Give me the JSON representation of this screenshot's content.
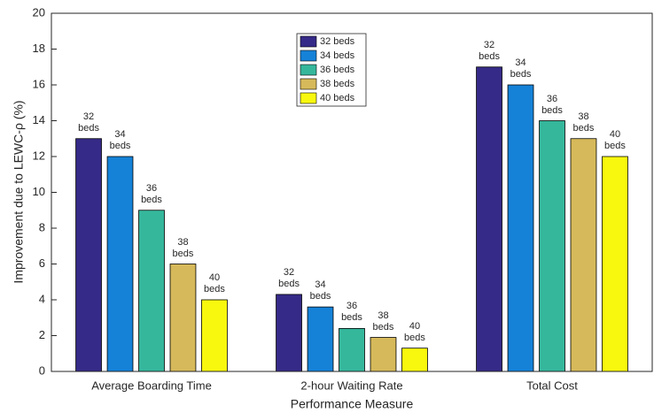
{
  "chart_data": {
    "type": "bar",
    "xlabel": "Performance Measure",
    "ylabel": "Improvement due to LEWC-ρ (%)",
    "categories": [
      "Average Boarding Time",
      "2-hour Waiting Rate",
      "Total Cost"
    ],
    "series": [
      {
        "name": "32 beds",
        "color": "#352a87",
        "values": [
          13,
          4.3,
          17
        ]
      },
      {
        "name": "34 beds",
        "color": "#1582d8",
        "values": [
          12,
          3.6,
          16
        ]
      },
      {
        "name": "36 beds",
        "color": "#35b79c",
        "values": [
          9,
          2.4,
          14
        ]
      },
      {
        "name": "38 beds",
        "color": "#d6b95a",
        "values": [
          6,
          1.9,
          13
        ]
      },
      {
        "name": "40 beds",
        "color": "#f8f80e",
        "values": [
          4,
          1.3,
          12
        ]
      }
    ],
    "ylim": [
      0,
      20
    ],
    "yticks": [
      0,
      2,
      4,
      6,
      8,
      10,
      12,
      14,
      16,
      18,
      20
    ],
    "legend": "top"
  }
}
